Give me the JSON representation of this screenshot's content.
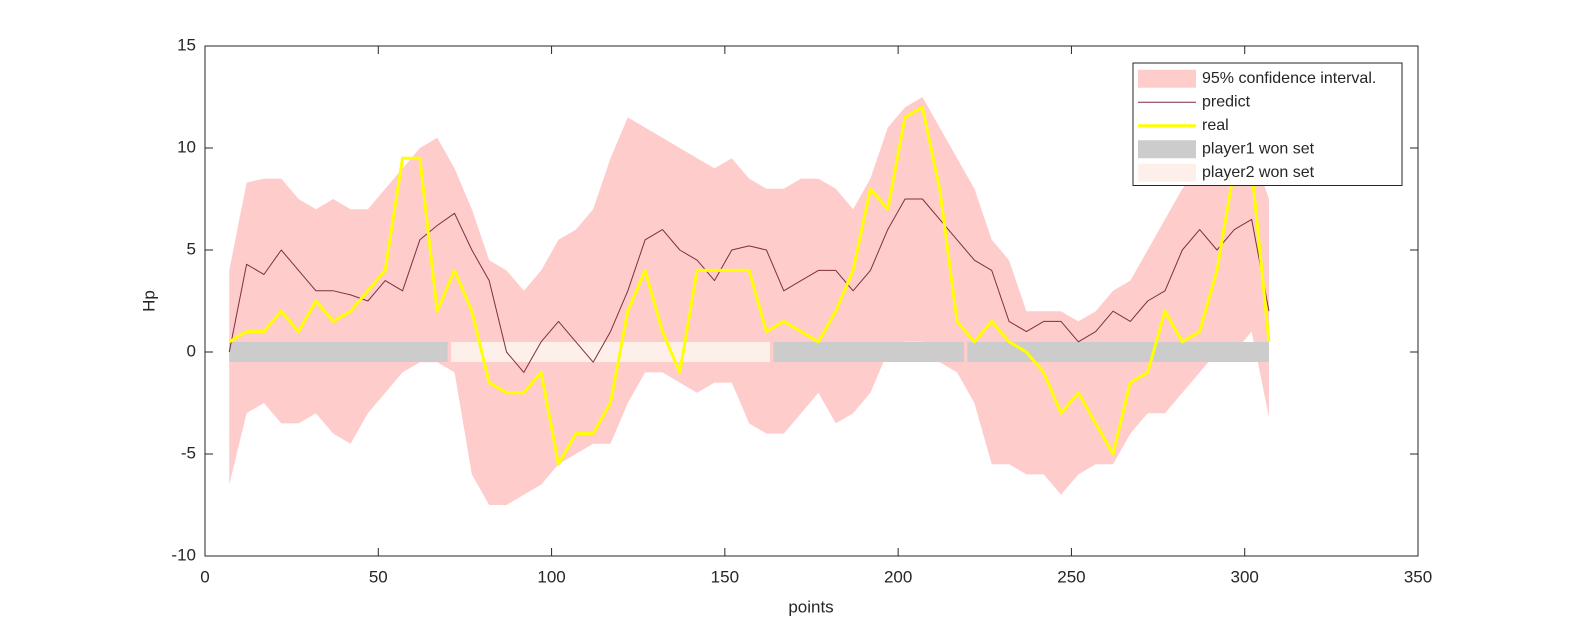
{
  "chart_data": {
    "type": "line",
    "xlabel": "points",
    "ylabel": "Hp",
    "xlim": [
      0,
      350
    ],
    "xticks": [
      0,
      50,
      100,
      150,
      200,
      250,
      300,
      350
    ],
    "ylim": [
      -10,
      15
    ],
    "yticks": [
      -10,
      -5,
      0,
      5,
      10,
      15
    ],
    "legend": "upper right",
    "x": [
      7,
      12,
      17,
      22,
      27,
      32,
      37,
      42,
      47,
      52,
      57,
      62,
      67,
      72,
      77,
      82,
      87,
      92,
      97,
      102,
      107,
      112,
      117,
      122,
      127,
      132,
      137,
      142,
      147,
      152,
      157,
      162,
      167,
      172,
      177,
      182,
      187,
      192,
      197,
      202,
      207,
      212,
      217,
      222,
      227,
      232,
      237,
      242,
      247,
      252,
      257,
      262,
      267,
      272,
      277,
      282,
      287,
      292,
      297,
      302,
      307
    ],
    "series": [
      {
        "name": "95% confidence interval.",
        "color": "#ffcccc",
        "upper": [
          4,
          8.3,
          8.5,
          8.5,
          7.5,
          7,
          7.5,
          7,
          7,
          8,
          9,
          10,
          10.5,
          9,
          7,
          4.5,
          4,
          3,
          4,
          5.5,
          6,
          7,
          9.5,
          11.5,
          11,
          10.5,
          10,
          9.5,
          9,
          9.5,
          8.5,
          8,
          8,
          8.5,
          8.5,
          8,
          7,
          8.5,
          11,
          12,
          12.5,
          11,
          9.5,
          8,
          5.5,
          4.5,
          2,
          2,
          2,
          1.5,
          2,
          3,
          3.5,
          5,
          6.5,
          8,
          9,
          9.5,
          10,
          10,
          7.5
        ],
        "lower": [
          -6.5,
          -3,
          -2.5,
          -3.5,
          -3.5,
          -3,
          -4,
          -4.5,
          -3,
          -2,
          -1,
          -0.5,
          -0.5,
          -1,
          -6,
          -7.5,
          -7.5,
          -7,
          -6.5,
          -5.5,
          -5,
          -4.5,
          -4.5,
          -2.5,
          -1,
          -1,
          -1.5,
          -2,
          -1.5,
          -1.5,
          -3.5,
          -4,
          -4,
          -3,
          -2,
          -3.5,
          -3,
          -2,
          0,
          0.5,
          0.5,
          -0.5,
          -1,
          -2.5,
          -5.5,
          -5.5,
          -6,
          -6,
          -7,
          -6,
          -5.5,
          -5.5,
          -4,
          -3,
          -3,
          -2,
          -1,
          0,
          0,
          1,
          -3.2
        ]
      },
      {
        "name": "predict",
        "color": "#7e2f3e",
        "values": [
          0,
          4.3,
          3.8,
          5,
          4,
          3,
          3,
          2.8,
          2.5,
          3.5,
          3,
          5.5,
          6.2,
          6.8,
          5,
          3.5,
          0,
          -1,
          0.5,
          1.5,
          0.5,
          -0.5,
          1,
          3,
          5.5,
          6,
          5,
          4.5,
          3.5,
          5,
          5.2,
          5,
          3,
          3.5,
          4,
          4,
          3,
          4,
          6,
          7.5,
          7.5,
          6.5,
          5.5,
          4.5,
          4,
          1.5,
          1,
          1.5,
          1.5,
          0.5,
          1,
          2,
          1.5,
          2.5,
          3,
          5,
          6,
          5,
          6,
          6.5,
          2
        ]
      },
      {
        "name": "real",
        "color": "#ffff00",
        "values": [
          0.5,
          1,
          1,
          2,
          1,
          2.5,
          1.5,
          2,
          3,
          4,
          9.5,
          9.5,
          2,
          4,
          2,
          -1.5,
          -2,
          -2,
          -1,
          -5.5,
          -4,
          -4,
          -2.5,
          2,
          4,
          1,
          -1,
          4,
          4,
          4,
          4,
          1,
          1.5,
          1,
          0.5,
          2,
          4,
          8,
          7,
          11.5,
          12,
          8,
          1.5,
          0.5,
          1.5,
          0.5,
          0,
          -1,
          -3,
          -2,
          -3.5,
          -5,
          -1.5,
          -1,
          2,
          0.5,
          1,
          4,
          9,
          9,
          0.5
        ]
      },
      {
        "name": "player1 won set",
        "color": "#cccccc",
        "ranges": [
          [
            7,
            70
          ],
          [
            164,
            219
          ],
          [
            220,
            307
          ]
        ]
      },
      {
        "name": "player2 won set",
        "color": "#fdf0eb",
        "ranges": [
          [
            71,
            163
          ]
        ]
      }
    ]
  }
}
